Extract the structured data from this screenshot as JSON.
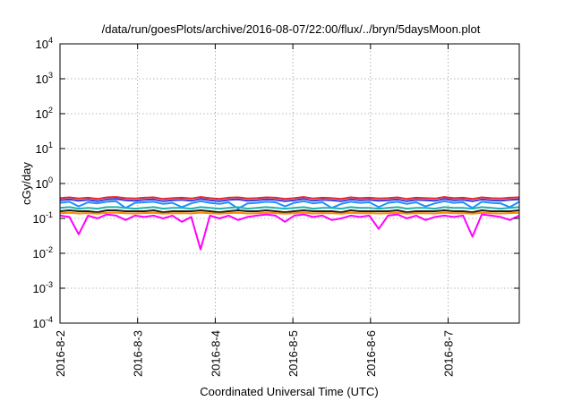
{
  "chart_data": {
    "type": "line",
    "title": "/data/run/goesPlots/archive/2016-08-07/22:00/flux/../bryn/5daysMoon.plot",
    "xlabel": "Coordinated Universal Time (UTC)",
    "ylabel": "cGy/day",
    "yscale": "log",
    "ylim": [
      0.0001,
      10000
    ],
    "xlim": [
      "2016-08-02T00:00",
      "2016-08-07T22:00"
    ],
    "grid": true,
    "x_ticks": [
      "2016-8-2",
      "2016-8-3",
      "2016-8-4",
      "2016-8-5",
      "2016-8-6",
      "2016-8-7"
    ],
    "y_ticks": [
      {
        "base": "10",
        "exp": "-4",
        "value": 0.0001
      },
      {
        "base": "10",
        "exp": "-3",
        "value": 0.001
      },
      {
        "base": "10",
        "exp": "-2",
        "value": 0.01
      },
      {
        "base": "10",
        "exp": "-1",
        "value": 0.1
      },
      {
        "base": "10",
        "exp": "0",
        "value": 1
      },
      {
        "base": "10",
        "exp": "1",
        "value": 10
      },
      {
        "base": "10",
        "exp": "2",
        "value": 100
      },
      {
        "base": "10",
        "exp": "3",
        "value": 1000
      },
      {
        "base": "10",
        "exp": "4",
        "value": 10000
      }
    ],
    "series": [
      {
        "color": "#e8202a",
        "values": [
          0.38,
          0.4,
          0.37,
          0.39,
          0.36,
          0.4,
          0.41,
          0.38,
          0.37,
          0.39,
          0.4,
          0.36,
          0.38,
          0.39,
          0.37,
          0.41,
          0.38,
          0.36,
          0.39,
          0.4,
          0.37,
          0.38,
          0.4,
          0.39,
          0.36,
          0.38,
          0.41,
          0.37,
          0.39,
          0.38,
          0.36,
          0.4,
          0.38,
          0.39,
          0.37,
          0.38,
          0.4,
          0.36,
          0.39,
          0.38,
          0.37,
          0.41,
          0.38,
          0.39,
          0.36,
          0.4,
          0.38,
          0.37,
          0.39,
          0.4
        ]
      },
      {
        "color": "#3a3ad8",
        "values": [
          0.33,
          0.35,
          0.32,
          0.34,
          0.31,
          0.35,
          0.36,
          0.33,
          0.32,
          0.34,
          0.35,
          0.31,
          0.33,
          0.34,
          0.32,
          0.36,
          0.33,
          0.31,
          0.34,
          0.35,
          0.32,
          0.33,
          0.35,
          0.34,
          0.31,
          0.33,
          0.36,
          0.32,
          0.34,
          0.33,
          0.31,
          0.35,
          0.33,
          0.34,
          0.32,
          0.33,
          0.35,
          0.31,
          0.34,
          0.33,
          0.32,
          0.36,
          0.33,
          0.34,
          0.31,
          0.35,
          0.33,
          0.32,
          0.34,
          0.35
        ]
      },
      {
        "color": "#1e90ff",
        "values": [
          0.28,
          0.3,
          0.22,
          0.29,
          0.27,
          0.3,
          0.31,
          0.2,
          0.28,
          0.29,
          0.3,
          0.26,
          0.28,
          0.21,
          0.27,
          0.31,
          0.28,
          0.26,
          0.29,
          0.19,
          0.27,
          0.28,
          0.3,
          0.29,
          0.22,
          0.28,
          0.31,
          0.27,
          0.29,
          0.2,
          0.26,
          0.3,
          0.28,
          0.29,
          0.21,
          0.28,
          0.3,
          0.26,
          0.29,
          0.22,
          0.27,
          0.31,
          0.28,
          0.29,
          0.2,
          0.3,
          0.28,
          0.27,
          0.21,
          0.3
        ]
      },
      {
        "color": "#20b2aa",
        "values": [
          0.2,
          0.21,
          0.19,
          0.2,
          0.19,
          0.21,
          0.21,
          0.2,
          0.19,
          0.2,
          0.21,
          0.19,
          0.2,
          0.2,
          0.19,
          0.21,
          0.2,
          0.19,
          0.2,
          0.21,
          0.19,
          0.2,
          0.21,
          0.2,
          0.19,
          0.2,
          0.21,
          0.19,
          0.2,
          0.2,
          0.19,
          0.21,
          0.2,
          0.2,
          0.19,
          0.2,
          0.21,
          0.19,
          0.2,
          0.2,
          0.19,
          0.21,
          0.2,
          0.2,
          0.19,
          0.21,
          0.2,
          0.19,
          0.2,
          0.21
        ]
      },
      {
        "color": "#1a1a1a",
        "values": [
          0.16,
          0.17,
          0.16,
          0.16,
          0.15,
          0.17,
          0.17,
          0.16,
          0.16,
          0.16,
          0.17,
          0.15,
          0.16,
          0.16,
          0.16,
          0.17,
          0.16,
          0.15,
          0.16,
          0.17,
          0.16,
          0.16,
          0.17,
          0.16,
          0.15,
          0.16,
          0.17,
          0.16,
          0.16,
          0.16,
          0.15,
          0.17,
          0.16,
          0.16,
          0.16,
          0.16,
          0.17,
          0.15,
          0.16,
          0.16,
          0.16,
          0.17,
          0.16,
          0.16,
          0.15,
          0.17,
          0.16,
          0.16,
          0.16,
          0.17
        ]
      },
      {
        "color": "#ff8c00",
        "values": [
          0.14,
          0.145,
          0.138,
          0.142,
          0.136,
          0.145,
          0.146,
          0.14,
          0.138,
          0.142,
          0.145,
          0.136,
          0.14,
          0.142,
          0.138,
          0.146,
          0.14,
          0.136,
          0.142,
          0.145,
          0.138,
          0.14,
          0.145,
          0.142,
          0.136,
          0.14,
          0.146,
          0.138,
          0.142,
          0.14,
          0.136,
          0.145,
          0.14,
          0.142,
          0.138,
          0.14,
          0.145,
          0.136,
          0.142,
          0.14,
          0.138,
          0.146,
          0.14,
          0.142,
          0.136,
          0.145,
          0.14,
          0.138,
          0.142,
          0.145
        ]
      },
      {
        "color": "#ff00ff",
        "values": [
          0.12,
          0.11,
          0.035,
          0.12,
          0.1,
          0.13,
          0.12,
          0.09,
          0.12,
          0.11,
          0.12,
          0.1,
          0.12,
          0.08,
          0.11,
          0.013,
          0.12,
          0.1,
          0.12,
          0.09,
          0.11,
          0.12,
          0.13,
          0.12,
          0.08,
          0.12,
          0.13,
          0.11,
          0.12,
          0.09,
          0.1,
          0.12,
          0.11,
          0.12,
          0.05,
          0.12,
          0.13,
          0.1,
          0.12,
          0.09,
          0.11,
          0.12,
          0.11,
          0.12,
          0.03,
          0.13,
          0.12,
          0.11,
          0.09,
          0.12
        ]
      }
    ]
  }
}
